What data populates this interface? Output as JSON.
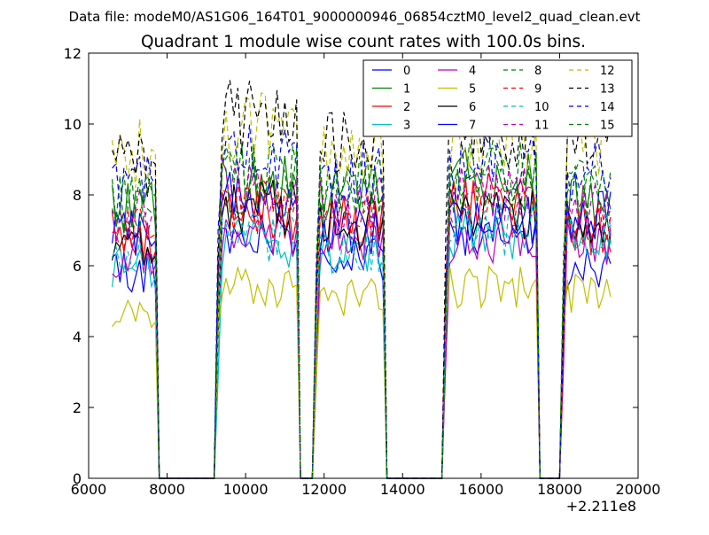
{
  "header": {
    "data_file": "Data file: modeM0/AS1G06_164T01_9000000946_06854cztM0_level2_quad_clean.evt"
  },
  "chart_data": {
    "type": "line",
    "title": "Quadrant 1 module wise count rates with 100.0s bins.",
    "xlabel": "",
    "ylabel": "",
    "x_offset_label": "+2.211e8",
    "xlim": [
      6000,
      20000
    ],
    "ylim": [
      0,
      12
    ],
    "x_ticks": [
      6000,
      8000,
      10000,
      12000,
      14000,
      16000,
      18000,
      20000
    ],
    "y_ticks": [
      0,
      2,
      4,
      6,
      8,
      10,
      12
    ],
    "grid": false,
    "legend_position": "top-right",
    "legend_columns": 4,
    "segments": [
      {
        "start": 6600,
        "end": 7700
      },
      {
        "start": 9300,
        "end": 11300
      },
      {
        "start": 11800,
        "end": 13500
      },
      {
        "start": 15100,
        "end": 17400
      },
      {
        "start": 18100,
        "end": 19300
      }
    ],
    "series": [
      {
        "name": "0",
        "color": "#0000ff",
        "dash": "solid",
        "levels": [
          5.8,
          6.8,
          6.2,
          7.0,
          6.0
        ]
      },
      {
        "name": "1",
        "color": "#008000",
        "dash": "solid",
        "levels": [
          7.6,
          8.4,
          8.0,
          8.4,
          7.9
        ]
      },
      {
        "name": "2",
        "color": "#ff0000",
        "dash": "solid",
        "levels": [
          6.8,
          7.4,
          7.2,
          7.8,
          7.0
        ]
      },
      {
        "name": "3",
        "color": "#00bfbf",
        "dash": "solid",
        "levels": [
          6.0,
          6.6,
          6.3,
          6.9,
          6.6
        ]
      },
      {
        "name": "4",
        "color": "#bf00bf",
        "dash": "solid",
        "levels": [
          6.3,
          7.0,
          6.6,
          6.6,
          6.7
        ]
      },
      {
        "name": "5",
        "color": "#bfbf00",
        "dash": "solid",
        "levels": [
          4.6,
          5.4,
          5.1,
          5.4,
          5.2
        ]
      },
      {
        "name": "6",
        "color": "#000000",
        "dash": "solid",
        "levels": [
          6.5,
          7.6,
          7.2,
          7.6,
          7.1
        ]
      },
      {
        "name": "7",
        "color": "#0000ff",
        "dash": "solid",
        "levels": [
          6.9,
          7.8,
          7.1,
          7.3,
          7.3
        ]
      },
      {
        "name": "8",
        "color": "#008000",
        "dash": "dashed",
        "levels": [
          7.8,
          8.6,
          8.2,
          8.4,
          8.2
        ]
      },
      {
        "name": "9",
        "color": "#ff0000",
        "dash": "dashed",
        "levels": [
          7.0,
          7.7,
          7.4,
          7.6,
          7.3
        ]
      },
      {
        "name": "10",
        "color": "#00bfbf",
        "dash": "dashed",
        "levels": [
          6.2,
          6.8,
          6.5,
          7.0,
          6.8
        ]
      },
      {
        "name": "11",
        "color": "#bf00bf",
        "dash": "dashed",
        "levels": [
          7.4,
          8.2,
          7.7,
          8.0,
          7.6
        ]
      },
      {
        "name": "12",
        "color": "#bfbf00",
        "dash": "dashed",
        "levels": [
          9.2,
          9.8,
          9.4,
          9.5,
          9.4
        ]
      },
      {
        "name": "13",
        "color": "#000000",
        "dash": "dashed",
        "levels": [
          8.8,
          10.2,
          9.6,
          9.8,
          9.7
        ]
      },
      {
        "name": "14",
        "color": "#0000ff",
        "dash": "dashed",
        "levels": [
          8.2,
          9.0,
          8.6,
          8.8,
          8.6
        ]
      },
      {
        "name": "15",
        "color": "#008000",
        "dash": "dashed",
        "levels": [
          7.8,
          8.8,
          8.4,
          8.6,
          8.1
        ]
      }
    ]
  }
}
